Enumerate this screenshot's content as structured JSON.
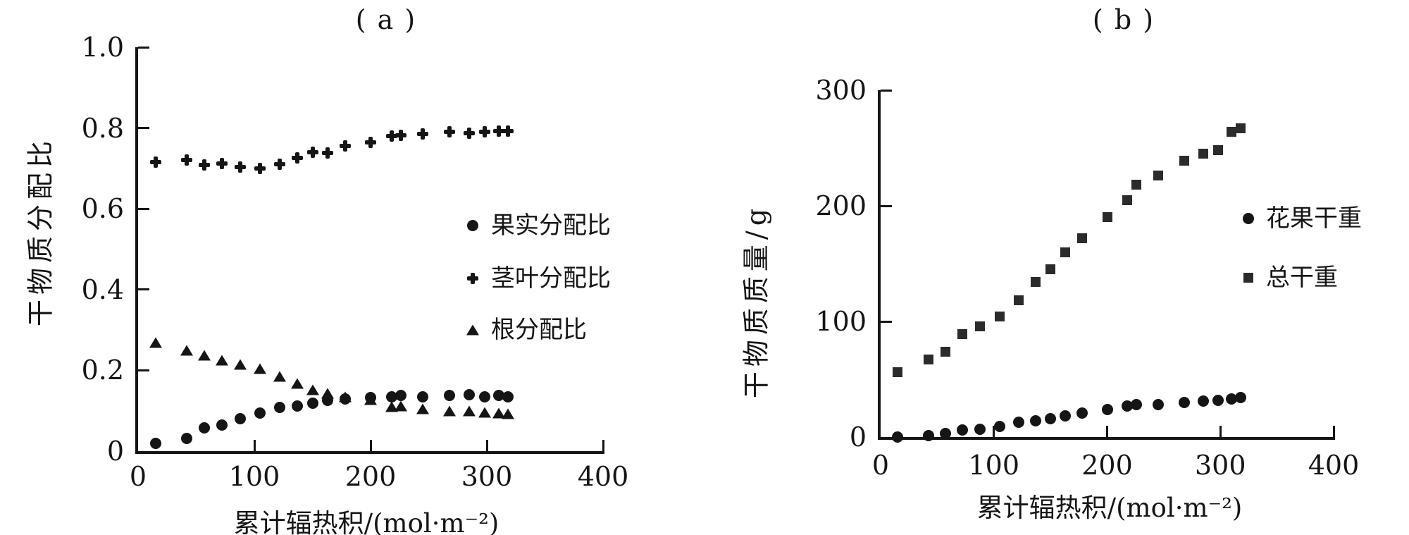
{
  "figure": {
    "background": "#ffffff",
    "ink_color": "#151515",
    "panels": [
      {
        "id": "a",
        "title": "( a )",
        "xlabel": "累计辐热积/(mol·m⁻²)",
        "ylabel": "干物质分配比",
        "xticklabels": [
          "0",
          "100",
          "200",
          "300",
          "400"
        ],
        "yticklabels": [
          "0",
          "0.2",
          "0.4",
          "0.6",
          "0.8",
          "1.0"
        ],
        "legend": [
          {
            "marker": "circle",
            "label": "果实分配比"
          },
          {
            "marker": "cross",
            "label": "茎叶分配比"
          },
          {
            "marker": "triangle",
            "label": "根分配比"
          }
        ]
      },
      {
        "id": "b",
        "title": "( b )",
        "xlabel": "累计辐热积/(mol·m⁻²)",
        "ylabel": "干物质质量/g",
        "xticklabels": [
          "0",
          "100",
          "200",
          "300",
          "400"
        ],
        "yticklabels": [
          "0",
          "100",
          "200",
          "300"
        ],
        "legend": [
          {
            "marker": "circle",
            "label": "花果干重"
          },
          {
            "marker": "square",
            "label": "总干重"
          }
        ]
      }
    ]
  },
  "chart_data": [
    {
      "type": "scatter",
      "title": "( a )",
      "xlabel": "累计辐热积/(mol·m⁻²)",
      "ylabel": "干物质分配比",
      "xlim": [
        0,
        400
      ],
      "ylim": [
        0,
        1.0
      ],
      "xticks": [
        0,
        100,
        200,
        300,
        400
      ],
      "yticks": [
        0,
        0.2,
        0.4,
        0.6,
        0.8,
        1.0
      ],
      "grid": false,
      "legend_position": "right-center-inside",
      "x": [
        15,
        42,
        57,
        72,
        88,
        105,
        122,
        137,
        150,
        163,
        178,
        200,
        218,
        226,
        245,
        268,
        285,
        298,
        310,
        318
      ],
      "series": [
        {
          "name": "果实分配比",
          "marker": "circle",
          "values": [
            0.02,
            0.032,
            0.058,
            0.065,
            0.08,
            0.095,
            0.108,
            0.112,
            0.118,
            0.125,
            0.13,
            0.132,
            0.135,
            0.137,
            0.134,
            0.137,
            0.139,
            0.134,
            0.137,
            0.135
          ]
        },
        {
          "name": "茎叶分配比",
          "marker": "cross",
          "values": [
            0.715,
            0.72,
            0.708,
            0.712,
            0.703,
            0.7,
            0.71,
            0.726,
            0.74,
            0.738,
            0.755,
            0.765,
            0.78,
            0.782,
            0.785,
            0.79,
            0.787,
            0.79,
            0.792,
            0.793
          ]
        },
        {
          "name": "根分配比",
          "marker": "triangle",
          "values": [
            0.268,
            0.25,
            0.238,
            0.225,
            0.215,
            0.205,
            0.185,
            0.168,
            0.152,
            0.143,
            0.135,
            0.128,
            0.11,
            0.112,
            0.105,
            0.1,
            0.1,
            0.096,
            0.095,
            0.093
          ]
        }
      ]
    },
    {
      "type": "scatter",
      "title": "( b )",
      "xlabel": "累计辐热积/(mol·m⁻²)",
      "ylabel": "干物质质量/g",
      "xlim": [
        0,
        400
      ],
      "ylim": [
        0,
        300
      ],
      "xticks": [
        0,
        100,
        200,
        300,
        400
      ],
      "yticks": [
        0,
        100,
        200,
        300
      ],
      "grid": false,
      "legend_position": "right-center-inside",
      "x": [
        15,
        42,
        57,
        72,
        88,
        105,
        122,
        137,
        150,
        163,
        178,
        200,
        218,
        226,
        245,
        268,
        285,
        298,
        310,
        318
      ],
      "series": [
        {
          "name": "花果干重",
          "marker": "circle",
          "values": [
            0,
            1,
            3,
            6,
            7,
            9,
            13,
            14,
            16,
            18,
            21,
            24,
            27,
            28,
            28,
            30,
            31,
            32,
            33,
            34
          ]
        },
        {
          "name": "总干重",
          "marker": "square",
          "values": [
            56,
            67,
            74,
            89,
            96,
            104,
            118,
            134,
            145,
            160,
            172,
            190,
            205,
            218,
            226,
            239,
            245,
            248,
            264,
            267
          ]
        }
      ]
    }
  ]
}
